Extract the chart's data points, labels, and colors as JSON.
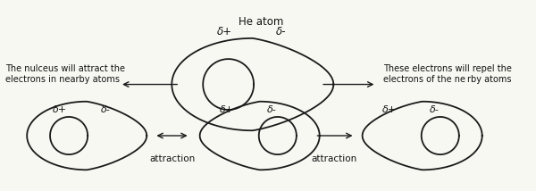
{
  "bg_color": "#f8f8f3",
  "text_color": "#111111",
  "line_color": "#1a1a1a",
  "title_top": "He atom",
  "delta_plus": "δ+",
  "delta_minus": "δ-",
  "label_left": "The nulceus will attract the\nelectrons in nearby atoms",
  "label_right": "These electrons will repel the\nelectrons of the ne rby atoms",
  "label_attract1": "attraction",
  "label_attract2": "attraction"
}
